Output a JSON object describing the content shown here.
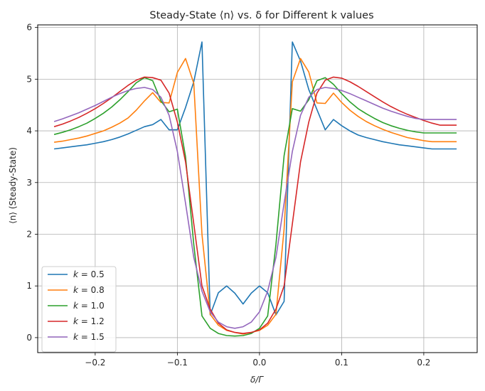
{
  "chart_data": {
    "type": "line",
    "title": "Steady-State ⟨n⟩ vs. δ for Different k values",
    "xlabel": "δ/Γ",
    "ylabel": "⟨n⟩ (Steady-State)",
    "xlim": [
      -0.27,
      0.265
    ],
    "ylim": [
      -0.29,
      6.05
    ],
    "xticks": [
      -0.2,
      -0.1,
      0.0,
      0.1,
      0.2
    ],
    "xtick_labels": [
      "−0.2",
      "−0.1",
      "0.0",
      "0.1",
      "0.2"
    ],
    "yticks": [
      0,
      1,
      2,
      3,
      4,
      5,
      6
    ],
    "ytick_labels": [
      "0",
      "1",
      "2",
      "3",
      "4",
      "5",
      "6"
    ],
    "grid": true,
    "legend_position": "lower-left",
    "x": [
      -0.25,
      -0.24,
      -0.23,
      -0.22,
      -0.21,
      -0.2,
      -0.19,
      -0.18,
      -0.17,
      -0.16,
      -0.15,
      -0.14,
      -0.13,
      -0.12,
      -0.11,
      -0.1,
      -0.09,
      -0.08,
      -0.07,
      -0.06,
      -0.05,
      -0.04,
      -0.03,
      -0.02,
      -0.01,
      0.0,
      0.01,
      0.02,
      0.03,
      0.04,
      0.05,
      0.06,
      0.07,
      0.08,
      0.09,
      0.1,
      0.11,
      0.12,
      0.13,
      0.14,
      0.15,
      0.16,
      0.17,
      0.18,
      0.19,
      0.2,
      0.21,
      0.22,
      0.23,
      0.24
    ],
    "series": [
      {
        "name": "k = 0.5",
        "legend_k": "0.5",
        "color": "#1f77b4",
        "values": [
          3.65,
          3.67,
          3.69,
          3.71,
          3.73,
          3.76,
          3.79,
          3.83,
          3.88,
          3.94,
          4.01,
          4.08,
          4.12,
          4.22,
          4.02,
          4.02,
          4.45,
          4.95,
          5.72,
          0.44,
          0.87,
          1.0,
          0.86,
          0.65,
          0.86,
          1.0,
          0.87,
          0.44,
          0.7,
          5.72,
          5.35,
          4.8,
          4.41,
          4.02,
          4.22,
          4.1,
          4.0,
          3.92,
          3.87,
          3.83,
          3.79,
          3.76,
          3.73,
          3.71,
          3.69,
          3.67,
          3.65,
          3.65,
          3.65,
          3.65
        ],
        "values_note": "ignored"
      },
      {
        "name": "k = 0.8",
        "legend_k": "0.8",
        "color": "#ff7f0e",
        "values": [
          3.78,
          3.8,
          3.83,
          3.86,
          3.9,
          3.95,
          4.0,
          4.07,
          4.15,
          4.25,
          4.4,
          4.58,
          4.74,
          4.55,
          4.54,
          5.13,
          5.4,
          4.92,
          2.0,
          0.45,
          0.24,
          0.14,
          0.1,
          0.07,
          0.1,
          0.14,
          0.24,
          0.45,
          2.1,
          4.95,
          5.4,
          5.14,
          4.54,
          4.53,
          4.73,
          4.55,
          4.4,
          4.28,
          4.18,
          4.1,
          4.03,
          3.97,
          3.92,
          3.87,
          3.84,
          3.81,
          3.79,
          3.79,
          3.79,
          3.79
        ]
      },
      {
        "name": "k = 1.0",
        "legend_k": "1.0",
        "color": "#2ca02c",
        "values": [
          3.93,
          3.97,
          4.02,
          4.08,
          4.15,
          4.24,
          4.34,
          4.46,
          4.6,
          4.76,
          4.93,
          5.03,
          4.97,
          4.58,
          4.37,
          4.42,
          3.5,
          1.8,
          0.42,
          0.18,
          0.08,
          0.04,
          0.03,
          0.04,
          0.08,
          0.18,
          0.42,
          1.8,
          3.52,
          4.43,
          4.38,
          4.6,
          4.97,
          5.03,
          4.9,
          4.72,
          4.56,
          4.43,
          4.33,
          4.24,
          4.16,
          4.1,
          4.05,
          4.01,
          3.98,
          3.96,
          3.96,
          3.96,
          3.96,
          3.96
        ]
      },
      {
        "name": "k = 1.2",
        "legend_k": "1.2",
        "color": "#d62728",
        "values": [
          4.08,
          4.13,
          4.19,
          4.26,
          4.34,
          4.43,
          4.53,
          4.64,
          4.76,
          4.88,
          4.98,
          5.04,
          5.03,
          4.98,
          4.73,
          4.17,
          3.4,
          2.2,
          1.0,
          0.55,
          0.28,
          0.15,
          0.1,
          0.08,
          0.1,
          0.15,
          0.28,
          0.55,
          1.0,
          2.2,
          3.4,
          4.17,
          4.73,
          4.98,
          5.04,
          5.02,
          4.95,
          4.86,
          4.76,
          4.66,
          4.56,
          4.47,
          4.39,
          4.32,
          4.26,
          4.2,
          4.15,
          4.11,
          4.11,
          4.11
        ]
      },
      {
        "name": "k = 1.5",
        "legend_k": "1.5",
        "color": "#9467bd",
        "values": [
          4.18,
          4.23,
          4.29,
          4.35,
          4.42,
          4.49,
          4.57,
          4.65,
          4.72,
          4.78,
          4.82,
          4.84,
          4.8,
          4.65,
          4.3,
          3.6,
          2.6,
          1.55,
          0.9,
          0.5,
          0.3,
          0.21,
          0.18,
          0.21,
          0.3,
          0.5,
          0.9,
          1.55,
          2.6,
          3.6,
          4.3,
          4.65,
          4.8,
          4.84,
          4.82,
          4.78,
          4.72,
          4.65,
          4.58,
          4.51,
          4.44,
          4.38,
          4.33,
          4.28,
          4.24,
          4.22,
          4.22,
          4.22,
          4.22,
          4.22
        ]
      }
    ]
  }
}
